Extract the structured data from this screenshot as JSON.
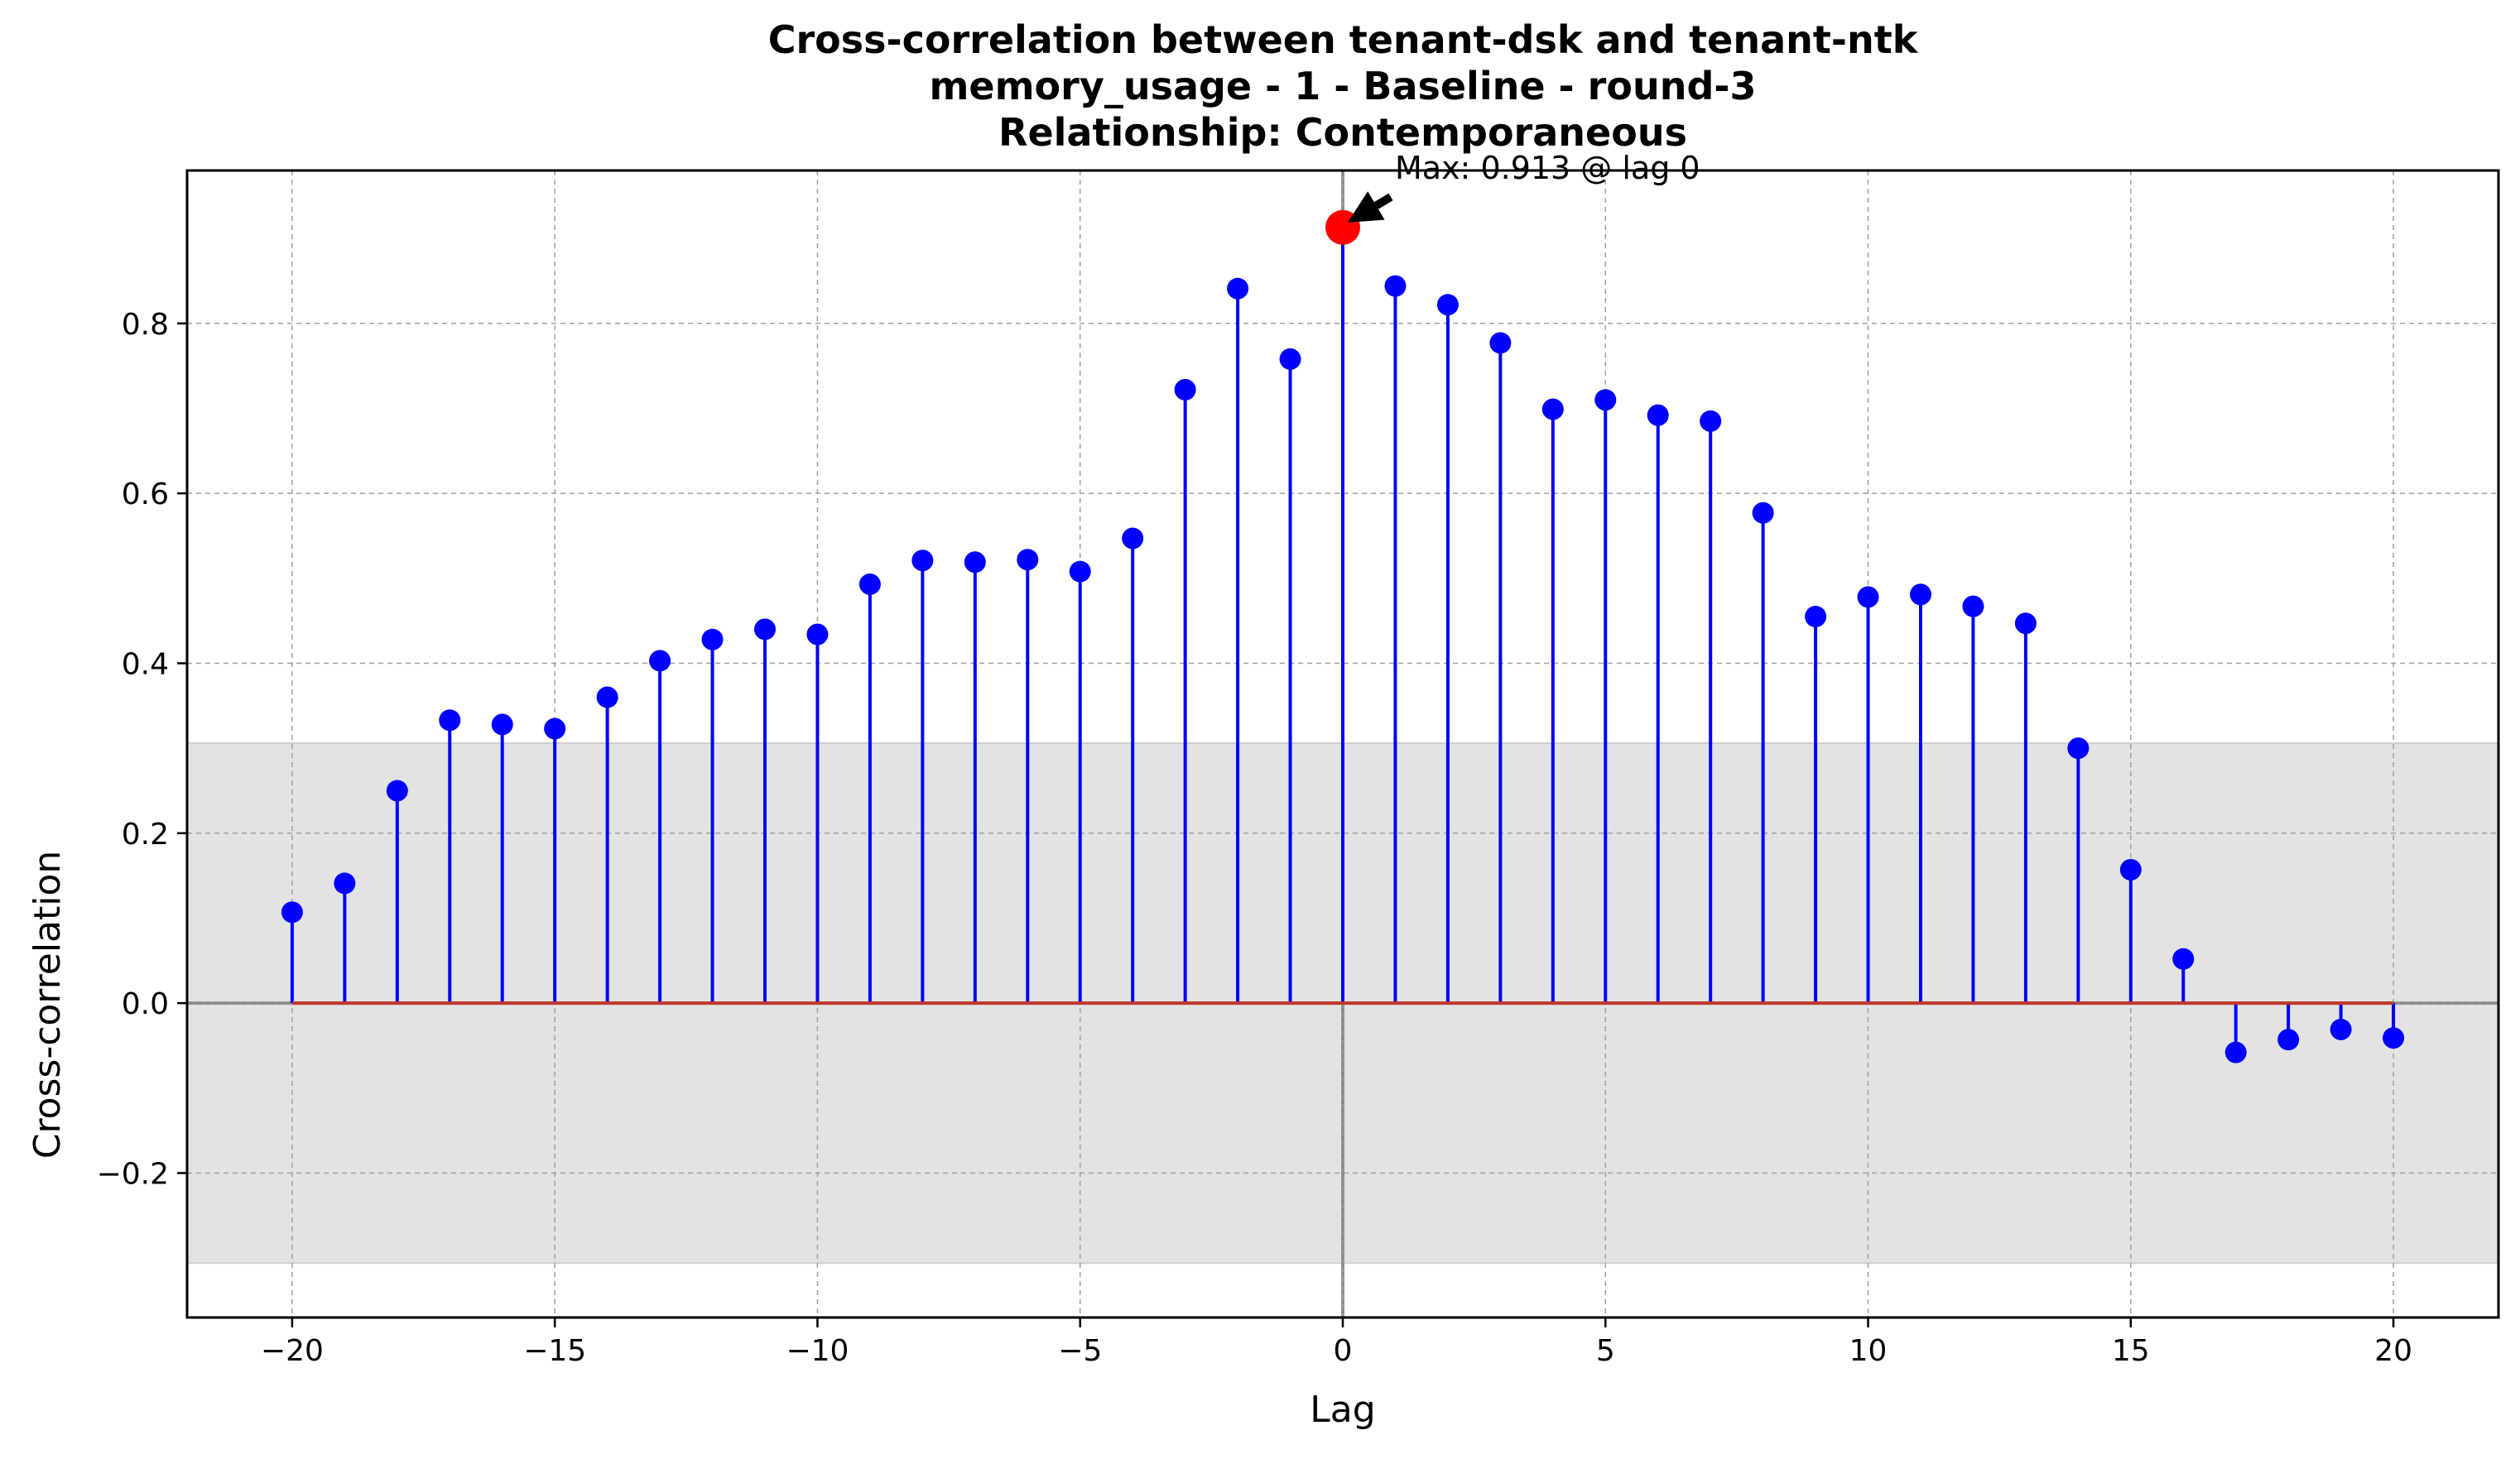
{
  "chart_data": {
    "type": "stem",
    "title_lines": [
      "Cross-correlation between tenant-dsk and tenant-ntk",
      "memory_usage - 1 - Baseline - round-3",
      "Relationship: Contemporaneous"
    ],
    "xlabel": "Lag",
    "ylabel": "Cross-correlation",
    "xlim": [
      -22,
      22
    ],
    "ylim": [
      -0.37,
      0.98
    ],
    "x_ticks": [
      -20,
      -15,
      -10,
      -5,
      0,
      5,
      10,
      15,
      20
    ],
    "x_tick_labels": [
      "−20",
      "−15",
      "−10",
      "−5",
      "0",
      "5",
      "10",
      "15",
      "20"
    ],
    "y_ticks": [
      -0.2,
      0.0,
      0.2,
      0.4,
      0.6,
      0.8
    ],
    "y_tick_labels": [
      "−0.2",
      "0.0",
      "0.2",
      "0.4",
      "0.6",
      "0.8"
    ],
    "grid": true,
    "confidence_band": [
      -0.306,
      0.306
    ],
    "lags": [
      -20,
      -19,
      -18,
      -17,
      -16,
      -15,
      -14,
      -13,
      -12,
      -11,
      -10,
      -9,
      -8,
      -7,
      -6,
      -5,
      -4,
      -3,
      -2,
      -1,
      0,
      1,
      2,
      3,
      4,
      5,
      6,
      7,
      8,
      9,
      10,
      11,
      12,
      13,
      14,
      15,
      16,
      17,
      18,
      19,
      20
    ],
    "values": [
      0.107,
      0.141,
      0.25,
      0.333,
      0.328,
      0.323,
      0.36,
      0.403,
      0.428,
      0.44,
      0.434,
      0.493,
      0.521,
      0.519,
      0.522,
      0.508,
      0.547,
      0.722,
      0.841,
      0.758,
      0.913,
      0.844,
      0.822,
      0.777,
      0.699,
      0.71,
      0.692,
      0.685,
      0.577,
      0.455,
      0.478,
      0.481,
      0.467,
      0.447,
      0.3,
      0.157,
      0.052,
      -0.058,
      -0.043,
      -0.031,
      -0.041
    ],
    "max_point": {
      "lag": 0,
      "value": 0.913
    },
    "annotation": "Max: 0.913 @ lag 0",
    "colors": {
      "stem": "#0000ff",
      "marker": "#0000ff",
      "max_marker": "#ff0000",
      "baseline": "#c0392b",
      "zero_line": "#808080",
      "band": "#e3e3e3",
      "grid": "#a0a0a0"
    }
  }
}
